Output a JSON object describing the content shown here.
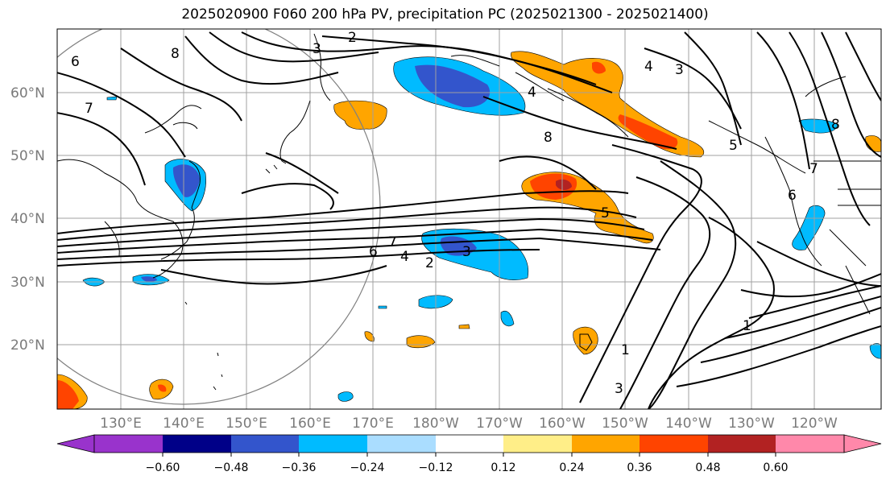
{
  "title": "2025020900 F060 200 hPa PV, precipitation PC (2025021300 - 2025021400)",
  "lat_labels": [
    "60°N",
    "50°N",
    "40°N",
    "30°N",
    "20°N"
  ],
  "lon_labels": [
    "130°E",
    "140°E",
    "150°E",
    "160°E",
    "170°E",
    "180°W",
    "170°W",
    "160°W",
    "150°W",
    "140°W",
    "130°W",
    "120°W"
  ],
  "colorbar": {
    "colors": [
      "#9933cc",
      "#000088",
      "#3355cc",
      "#00bbff",
      "#aaddff",
      "#ffffff",
      "#ffee88",
      "#ffa500",
      "#ff4400",
      "#b22222",
      "#ff88aa"
    ],
    "tick_labels": [
      "−0.60",
      "−0.48",
      "−0.36",
      "−0.24",
      "−0.12",
      "0.12",
      "0.24",
      "0.36",
      "0.48",
      "0.60"
    ]
  },
  "pv_contour_labels": [
    "2",
    "3",
    "6",
    "8",
    "7",
    "4",
    "8",
    "4",
    "5",
    "8",
    "7",
    "6",
    "3",
    "5",
    "6",
    "7",
    "4",
    "2",
    "3",
    "1",
    "3",
    "1"
  ]
}
